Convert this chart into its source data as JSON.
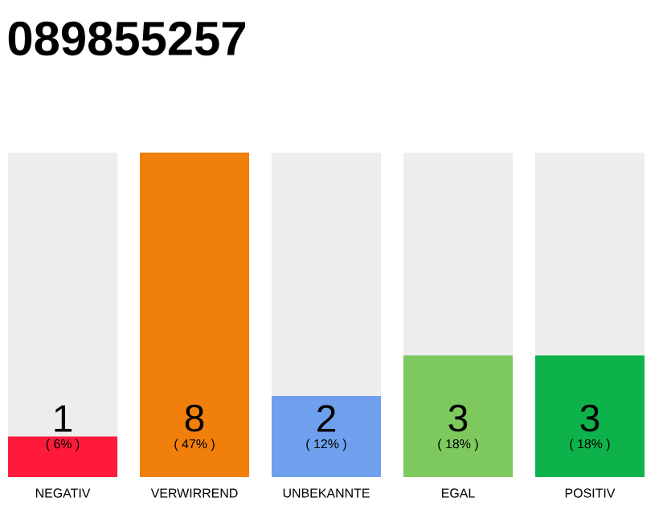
{
  "chart_data": {
    "type": "bar",
    "title": "089855257",
    "categories": [
      "NEGATIV",
      "VERWIRREND",
      "UNBEKANNTE",
      "EGAL",
      "POSITIV"
    ],
    "values": [
      1,
      8,
      2,
      3,
      3
    ],
    "colors": [
      "#ff1a3c",
      "#f07f0c",
      "#6fa0ee",
      "#7dc95e",
      "#0db34a"
    ],
    "ylim": [
      0,
      8
    ],
    "data_labels": true,
    "annotations": [
      "( 6% )",
      "( 47% )",
      "( 12% )",
      "( 18% )",
      "( 18% )"
    ]
  }
}
